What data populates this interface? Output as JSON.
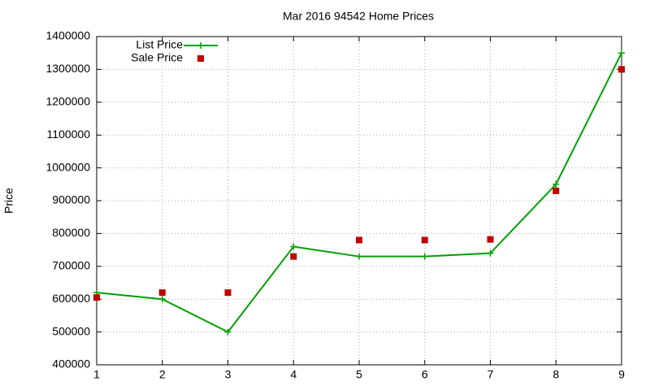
{
  "chart_data": {
    "type": "line",
    "title": "Mar 2016 94542 Home Prices",
    "y_label": "Price",
    "x": [
      1,
      2,
      3,
      4,
      5,
      6,
      7,
      8,
      9
    ],
    "series": [
      {
        "name": "List Price",
        "color": "#00a000",
        "style": "linespoints",
        "values": [
          620000,
          600000,
          500000,
          760000,
          730000,
          730000,
          740000,
          950000,
          1350000
        ]
      },
      {
        "name": "Sale Price",
        "color": "#c00000",
        "style": "points",
        "values": [
          605000,
          620000,
          620000,
          730000,
          780000,
          780000,
          782000,
          930000,
          1300000
        ]
      }
    ],
    "xlim": [
      1,
      9
    ],
    "xticks": [
      1,
      2,
      3,
      4,
      5,
      6,
      7,
      8,
      9
    ],
    "ylim": [
      400000,
      1400000
    ],
    "yticks": [
      400000,
      500000,
      600000,
      700000,
      800000,
      900000,
      1000000,
      1100000,
      1200000,
      1300000,
      1400000
    ],
    "grid": true,
    "legend": "top-left"
  }
}
